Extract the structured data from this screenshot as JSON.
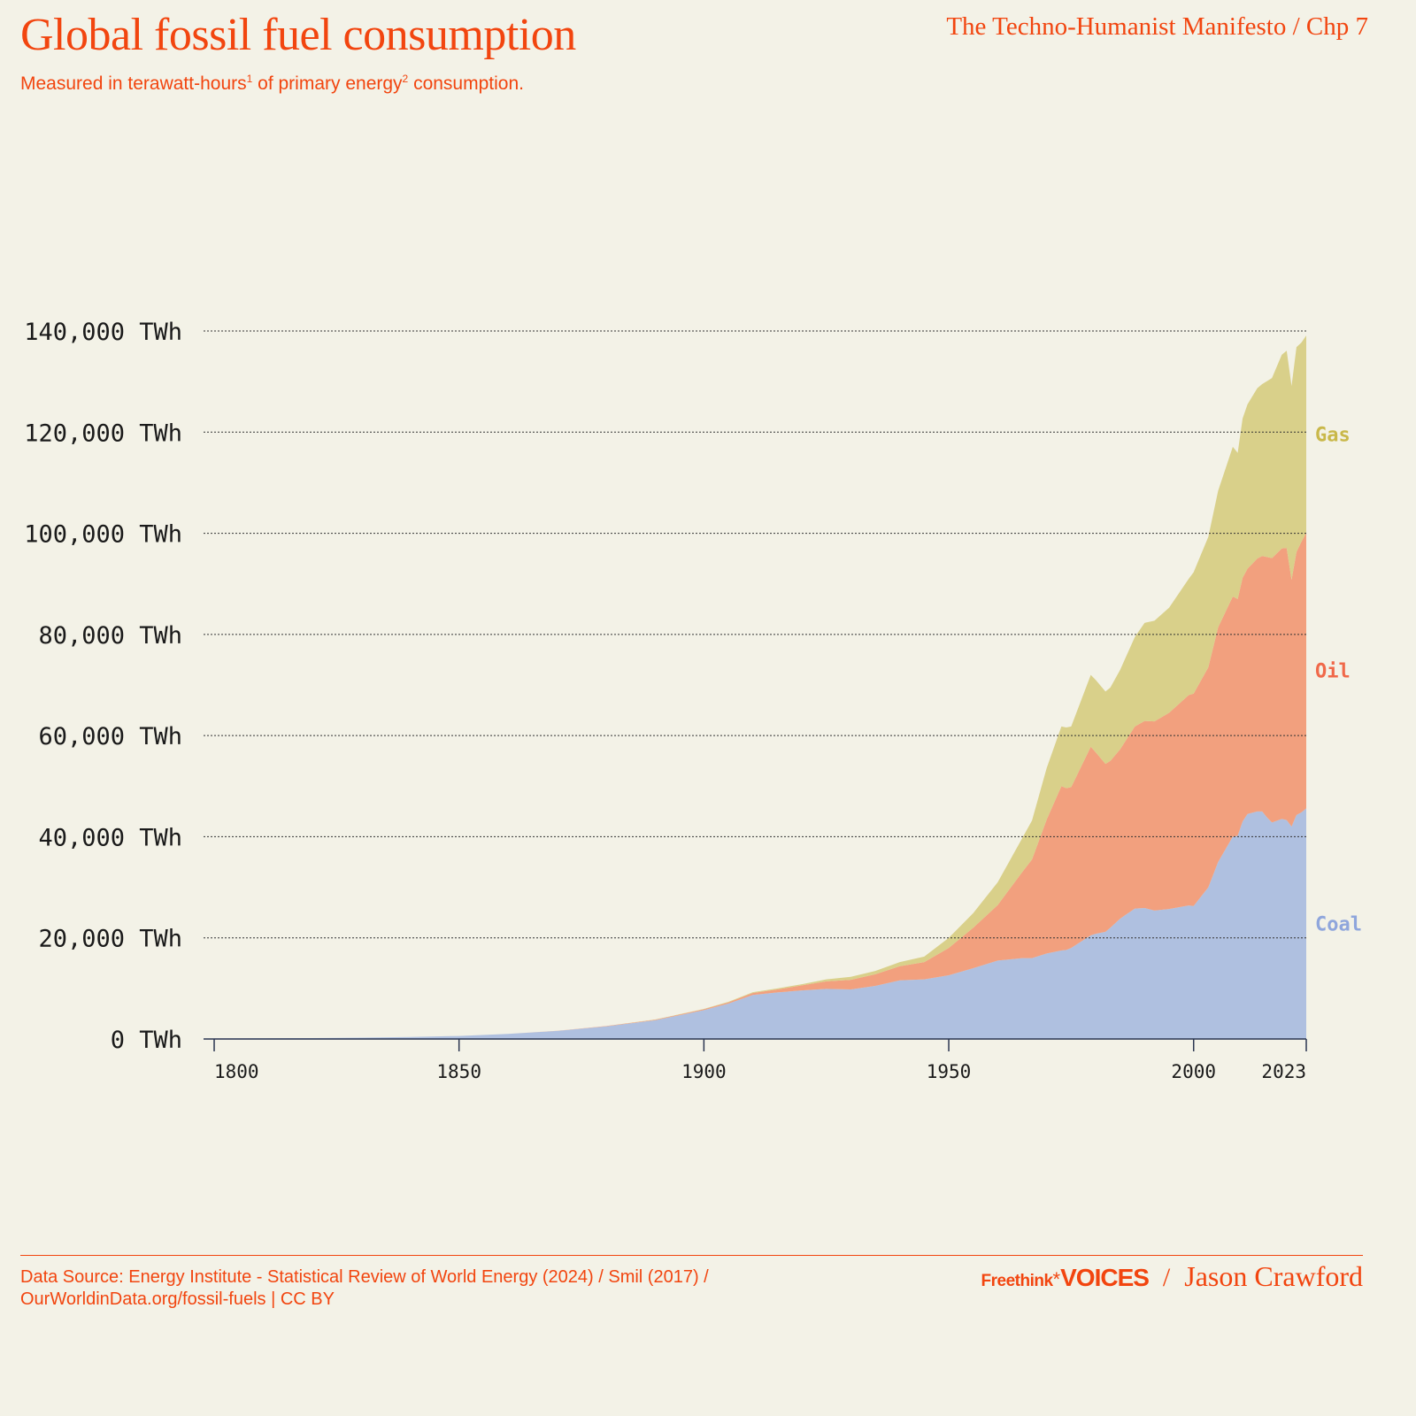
{
  "header": {
    "title": "Global fossil fuel consumption",
    "subtitle_pre": "Measured in terawatt-hours",
    "sup1": "1",
    "subtitle_mid": " of primary energy",
    "sup2": "2",
    "subtitle_post": " consumption.",
    "series_ref": "The Techno-Humanist Manifesto / Chp 7"
  },
  "footer": {
    "source_line1": "Data Source: Energy Institute - Statistical Review of World Energy (2024) / Smil (2017) /",
    "source_line2": "OurWorldinData.org/fossil-fuels | CC BY",
    "brand_freethink": "Freethink",
    "brand_star": "*",
    "brand_voices": "VOICES",
    "slash": "/",
    "author": "Jason Crawford"
  },
  "chart_data": {
    "type": "area",
    "stacked": true,
    "title": "Global fossil fuel consumption",
    "ylabel": "",
    "xlabel": "",
    "ylim": [
      0,
      140000
    ],
    "xlim": [
      1800,
      2023
    ],
    "grid": true,
    "yticks": [
      0,
      20000,
      40000,
      60000,
      80000,
      100000,
      120000,
      140000
    ],
    "ytick_labels": [
      "0 TWh",
      "20,000 TWh",
      "40,000 TWh",
      "60,000 TWh",
      "80,000 TWh",
      "100,000 TWh",
      "120,000 TWh",
      "140,000 TWh"
    ],
    "xticks": [
      1800,
      1850,
      1900,
      1950,
      2000,
      2023
    ],
    "xtick_labels": [
      "1800",
      "1850",
      "1900",
      "1950",
      "2000",
      "2023"
    ],
    "legend_placement": "right, inline at series end",
    "x": [
      1800,
      1810,
      1820,
      1830,
      1840,
      1850,
      1860,
      1870,
      1880,
      1890,
      1900,
      1905,
      1910,
      1915,
      1920,
      1925,
      1930,
      1935,
      1940,
      1945,
      1950,
      1955,
      1960,
      1965,
      1967,
      1970,
      1973,
      1974,
      1975,
      1979,
      1980,
      1982,
      1983,
      1985,
      1988,
      1990,
      1992,
      1995,
      1999,
      2000,
      2003,
      2005,
      2008,
      2009,
      2010,
      2011,
      2013,
      2014,
      2015,
      2016,
      2018,
      2019,
      2020,
      2021,
      2022,
      2023
    ],
    "series": [
      {
        "name": "Coal",
        "color": "#afc0e0",
        "label_color": "#8fa6dc",
        "values": [
          100,
          130,
          180,
          270,
          400,
          600,
          1000,
          1600,
          2500,
          3700,
          5700,
          7000,
          8700,
          9200,
          9600,
          9900,
          9800,
          10500,
          11600,
          11800,
          12600,
          14000,
          15500,
          16000,
          16000,
          16900,
          17500,
          17600,
          18000,
          20500,
          20800,
          21200,
          22000,
          23800,
          25800,
          25900,
          25400,
          25700,
          26400,
          26300,
          30000,
          35000,
          40000,
          40200,
          43000,
          44500,
          45000,
          45000,
          43800,
          42800,
          43500,
          43300,
          42000,
          44300,
          44800,
          45600
        ]
      },
      {
        "name": "Oil",
        "color": "#f2a07e",
        "label_color": "#f0694a",
        "values": [
          0,
          0,
          0,
          0,
          0,
          0,
          0,
          10,
          50,
          100,
          180,
          250,
          400,
          600,
          1000,
          1500,
          1900,
          2300,
          2800,
          3400,
          5400,
          8000,
          11000,
          17000,
          19500,
          26500,
          32500,
          32000,
          31800,
          37300,
          35900,
          33200,
          33000,
          33500,
          36000,
          37000,
          37400,
          38800,
          41600,
          42000,
          43500,
          46400,
          47500,
          46800,
          48200,
          48500,
          50000,
          50500,
          51500,
          52300,
          53500,
          53800,
          48800,
          52000,
          53500,
          54500
        ]
      },
      {
        "name": "Gas",
        "color": "#d9d08a",
        "label_color": "#c9b84a",
        "values": [
          0,
          0,
          0,
          0,
          0,
          0,
          0,
          0,
          0,
          40,
          60,
          90,
          150,
          200,
          230,
          400,
          600,
          650,
          800,
          1100,
          2000,
          2900,
          4500,
          6700,
          7700,
          10200,
          11800,
          12000,
          12000,
          14200,
          14300,
          14300,
          14500,
          15700,
          17700,
          19400,
          19900,
          20800,
          23000,
          24000,
          25800,
          27000,
          29600,
          28900,
          31500,
          32500,
          33700,
          34000,
          34800,
          35600,
          38300,
          39000,
          38300,
          40500,
          39400,
          39000
        ]
      }
    ]
  }
}
